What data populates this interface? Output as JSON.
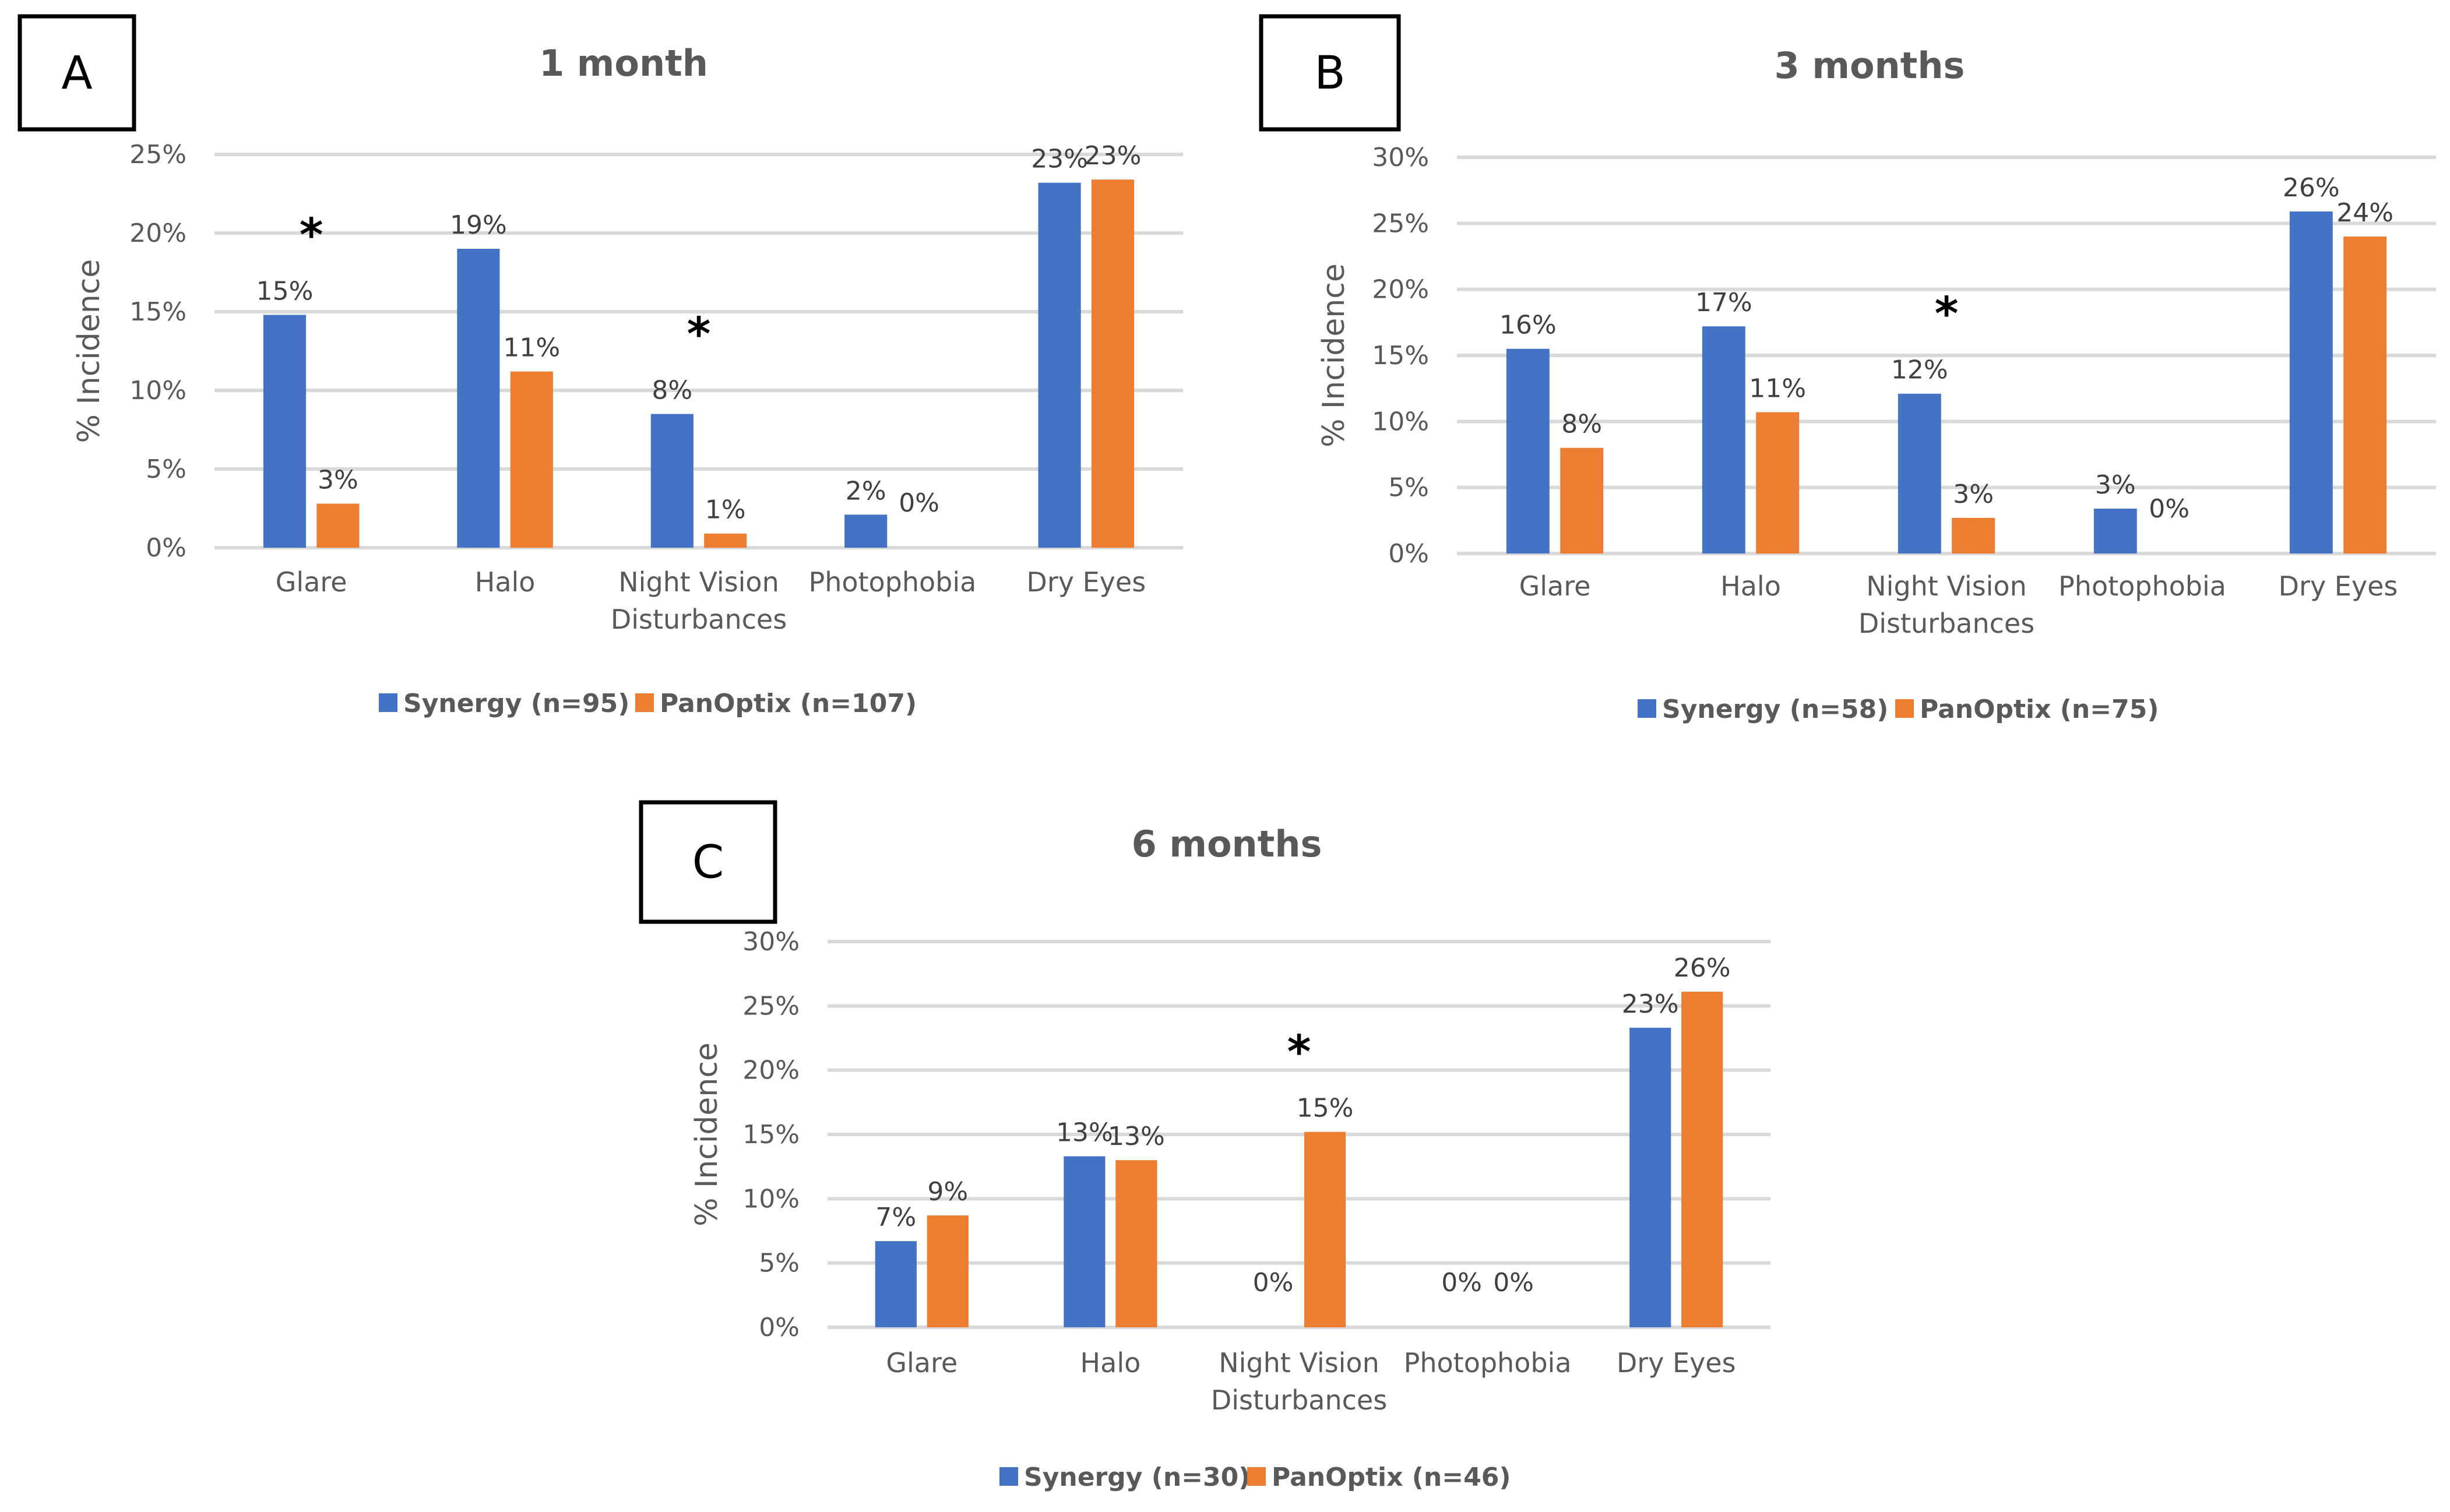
{
  "colors": {
    "synergy": "#4472C4",
    "panoptix": "#ED7D31",
    "grid": "#D9D9D9",
    "text": "#595959"
  },
  "chart_data": [
    {
      "type": "bar",
      "panel_letter": "A",
      "title": "1 month",
      "ylabel": "% Incidence",
      "ylim": [
        0,
        25
      ],
      "yticks": [
        "0%",
        "5%",
        "10%",
        "15%",
        "20%",
        "25%"
      ],
      "categories": [
        [
          "Glare"
        ],
        [
          "Halo"
        ],
        [
          "Night Vision",
          "Disturbances"
        ],
        [
          "Photophobia"
        ],
        [
          "Dry Eyes"
        ]
      ],
      "series": [
        {
          "name": "Synergy (n=95)",
          "key": "synergy",
          "values": [
            14.8,
            19.0,
            8.5,
            2.1,
            23.2
          ],
          "labels": [
            "15%",
            "19%",
            "8%",
            "2%",
            "23%"
          ]
        },
        {
          "name": "PanOptix (n=107)",
          "key": "panoptix",
          "values": [
            2.8,
            11.2,
            0.9,
            0,
            23.4
          ],
          "labels": [
            "3%",
            "11%",
            "1%",
            "0%",
            "23%"
          ]
        }
      ],
      "significant": [
        "*",
        "",
        "*",
        "",
        ""
      ]
    },
    {
      "type": "bar",
      "panel_letter": "B",
      "title": "3 months",
      "ylabel": "% Incidence",
      "ylim": [
        0,
        30
      ],
      "yticks": [
        "0%",
        "5%",
        "10%",
        "15%",
        "20%",
        "25%",
        "30%"
      ],
      "categories": [
        [
          "Glare"
        ],
        [
          "Halo"
        ],
        [
          "Night Vision",
          "Disturbances"
        ],
        [
          "Photophobia"
        ],
        [
          "Dry Eyes"
        ]
      ],
      "series": [
        {
          "name": "Synergy (n=58)",
          "key": "synergy",
          "values": [
            15.5,
            17.2,
            12.1,
            3.4,
            25.9
          ],
          "labels": [
            "16%",
            "17%",
            "12%",
            "3%",
            "26%"
          ]
        },
        {
          "name": "PanOptix (n=75)",
          "key": "panoptix",
          "values": [
            8.0,
            10.7,
            2.7,
            0,
            24.0
          ],
          "labels": [
            "8%",
            "11%",
            "3%",
            "0%",
            "24%"
          ]
        }
      ],
      "significant": [
        "",
        "",
        "*",
        "",
        ""
      ]
    },
    {
      "type": "bar",
      "panel_letter": "C",
      "title": "6 months",
      "ylabel": "% Incidence",
      "ylim": [
        0,
        30
      ],
      "yticks": [
        "0%",
        "5%",
        "10%",
        "15%",
        "20%",
        "25%",
        "30%"
      ],
      "categories": [
        [
          "Glare"
        ],
        [
          "Halo"
        ],
        [
          "Night Vision",
          "Disturbances"
        ],
        [
          "Photophobia"
        ],
        [
          "Dry Eyes"
        ]
      ],
      "series": [
        {
          "name": "Synergy (n=30)",
          "key": "synergy",
          "values": [
            6.7,
            13.3,
            0,
            0,
            23.3
          ],
          "labels": [
            "7%",
            "13%",
            "0%",
            "0%",
            "23%"
          ]
        },
        {
          "name": "PanOptix (n=46)",
          "key": "panoptix",
          "values": [
            8.7,
            13.0,
            15.2,
            0,
            26.1
          ],
          "labels": [
            "9%",
            "13%",
            "15%",
            "0%",
            "26%"
          ]
        }
      ],
      "significant": [
        "",
        "",
        "*",
        "",
        ""
      ]
    }
  ]
}
